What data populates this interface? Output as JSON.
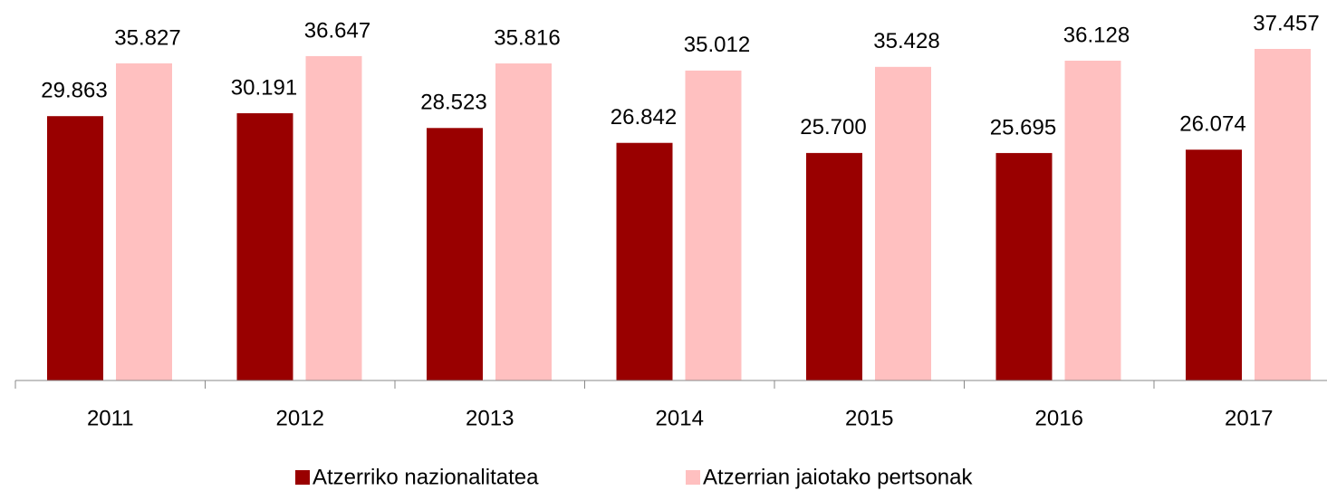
{
  "chart_data": {
    "type": "bar",
    "categories": [
      "2011",
      "2012",
      "2013",
      "2014",
      "2015",
      "2016",
      "2017"
    ],
    "series": [
      {
        "name": "Atzerriko nazionalitatea",
        "color": "#990000",
        "values": [
          29863,
          30191,
          28523,
          26842,
          25700,
          25695,
          26074
        ],
        "value_labels": [
          "29.863",
          "30.191",
          "28.523",
          "26.842",
          "25.700",
          "25.695",
          "26.074"
        ]
      },
      {
        "name": "Atzerrian jaiotako pertsonak",
        "color": "#ffc0c0",
        "values": [
          35827,
          36647,
          35816,
          35012,
          35428,
          36128,
          37457
        ],
        "value_labels": [
          "35.827",
          "36.647",
          "35.816",
          "35.012",
          "35.428",
          "36.128",
          "37.457"
        ]
      }
    ]
  }
}
